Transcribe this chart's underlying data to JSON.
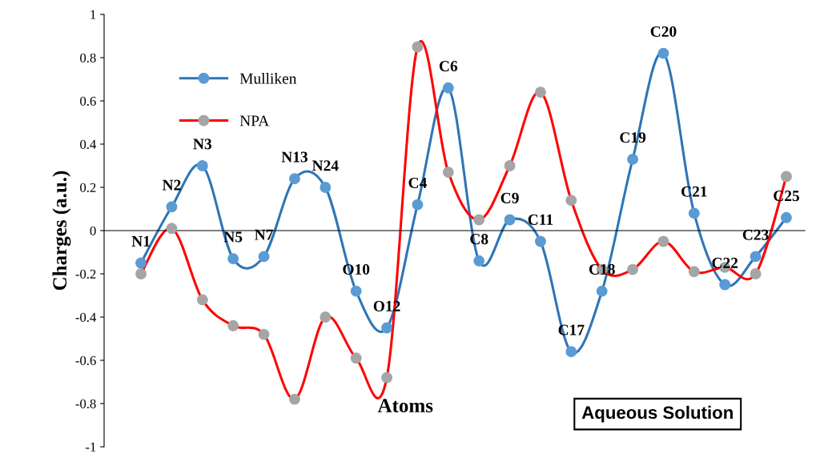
{
  "chart_data": {
    "type": "line",
    "ylabel": "Charges (a.u.)",
    "xlabel": "Atoms",
    "categories": [
      "N1",
      "N2",
      "N3",
      "N5",
      "N7",
      "N13",
      "N24",
      "O10",
      "O12",
      "C4",
      "C6",
      "C8",
      "C9",
      "C11",
      "C17",
      "C18",
      "C19",
      "C20",
      "C21",
      "C22",
      "C23",
      "C25"
    ],
    "series": [
      {
        "name": "Mulliken",
        "color": "#2e75b6",
        "colors": [
          "#5b9bd5",
          "#5b9bd5",
          "#5b9bd5",
          "#5b9bd5",
          "#5b9bd5",
          "#5b9bd5",
          "#5b9bd5",
          "#5b9bd5",
          "#5b9bd5",
          "#5b9bd5",
          "#5b9bd5",
          "#5b9bd5",
          "#5b9bd5",
          "#5b9bd5",
          "#5b9bd5",
          "#5b9bd5",
          "#5b9bd5",
          "#5b9bd5",
          "#5b9bd5",
          "#5b9bd5",
          "#5b9bd5",
          "#5b9bd5"
        ],
        "values": [
          -0.15,
          0.11,
          0.3,
          -0.13,
          -0.12,
          0.24,
          0.2,
          -0.28,
          -0.45,
          0.12,
          0.66,
          -0.14,
          0.05,
          -0.05,
          -0.56,
          -0.28,
          0.33,
          0.82,
          0.08,
          -0.25,
          -0.12,
          0.06
        ]
      },
      {
        "name": "NPA",
        "color": "#ff0000",
        "colors": [
          "#a5a5a5",
          "#a5a5a5",
          "#a5a5a5",
          "#a5a5a5",
          "#a5a5a5",
          "#a5a5a5",
          "#a5a5a5",
          "#a5a5a5",
          "#a5a5a5",
          "#a5a5a5",
          "#a5a5a5",
          "#a5a5a5",
          "#a5a5a5",
          "#a5a5a5",
          "#a5a5a5",
          "#a5a5a5",
          "#a5a5a5",
          "#a5a5a5",
          "#a5a5a5",
          "#a5a5a5",
          "#a5a5a5",
          "#a5a5a5"
        ],
        "values": [
          -0.2,
          0.01,
          -0.32,
          -0.44,
          -0.48,
          -0.78,
          -0.4,
          -0.59,
          -0.68,
          0.85,
          0.27,
          0.05,
          0.3,
          0.64,
          0.14,
          -0.18,
          -0.18,
          -0.05,
          -0.19,
          -0.17,
          -0.2,
          0.25
        ]
      }
    ],
    "ylim": [
      -1,
      1
    ],
    "yticks": [
      -1,
      -0.8,
      -0.6,
      -0.4,
      -0.2,
      0,
      0.2,
      0.4,
      0.6,
      0.8,
      1
    ],
    "annotations": [
      "Aqueous Solution"
    ],
    "legend": "top left",
    "marker": "circle",
    "line_style": "solid",
    "grid": false
  }
}
